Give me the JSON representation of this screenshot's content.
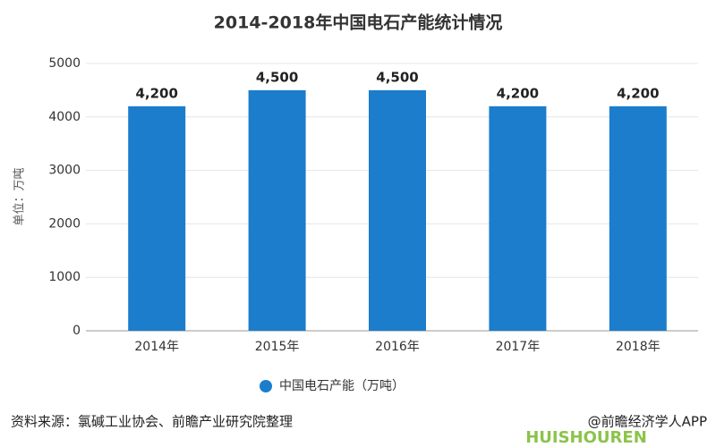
{
  "chart_data": {
    "type": "bar",
    "title": "2014-2018年中国电石产能统计情况",
    "y_label": "单位：万吨",
    "categories": [
      "2014年",
      "2015年",
      "2016年",
      "2017年",
      "2018年"
    ],
    "series": [
      {
        "name": "中国电石产能（万吨）",
        "color": "#1b7dcc",
        "values": [
          4200,
          4500,
          4500,
          4200,
          4200
        ],
        "value_labels": [
          "4,200",
          "4,500",
          "4,500",
          "4,200",
          "4,200"
        ]
      }
    ],
    "ylim": [
      0,
      5000
    ],
    "yticks": [
      0,
      1000,
      2000,
      3000,
      4000,
      5000
    ],
    "grid": true,
    "legend": "bottom",
    "source": "资料来源：氯碱工业协会、前瞻产业研究院整理",
    "watermark": "@前瞻经济学人APP",
    "logo_text": "HUISHOUREN"
  }
}
